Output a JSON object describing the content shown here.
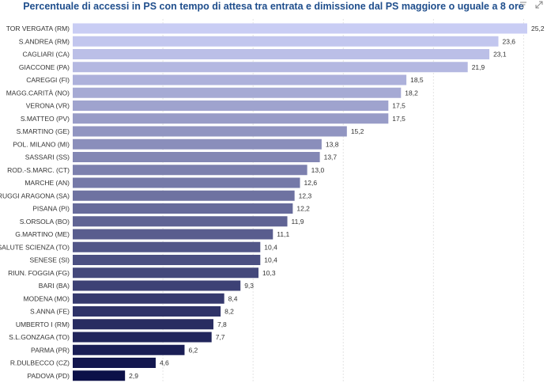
{
  "chart_data": {
    "type": "bar",
    "orientation": "horizontal",
    "title": "Percentuale di accessi in PS con tempo di attesa tra entrata e dimissione dal PS maggiore o uguale a 8 ore",
    "categories": [
      "TOR VERGATA (RM)",
      "S.ANDREA (RM)",
      "CAGLIARI (CA)",
      "GIACCONE (PA)",
      "CAREGGI (FI)",
      "MAGG.CARITÀ (NO)",
      "VERONA (VR)",
      "S.MATTEO (PV)",
      "S.MARTINO (GE)",
      "POL. MILANO (MI)",
      "SASSARI (SS)",
      "ROD.-S.MARC. (CT)",
      "MARCHE (AN)",
      "RUGGI ARAGONA (SA)",
      "PISANA (PI)",
      "S.ORSOLA (BO)",
      "G.MARTINO (ME)",
      "SALUTE SCIENZA (TO)",
      "SENESE (SI)",
      "RIUN. FOGGIA (FG)",
      "BARI (BA)",
      "MODENA (MO)",
      "S.ANNA (FE)",
      "UMBERTO I (RM)",
      "S.L.GONZAGA (TO)",
      "PARMA (PR)",
      "R.DULBECCO (CZ)",
      "PADOVA (PD)"
    ],
    "values": [
      25.2,
      23.6,
      23.1,
      21.9,
      18.5,
      18.2,
      17.5,
      17.5,
      15.2,
      13.8,
      13.7,
      13.0,
      12.6,
      12.3,
      12.2,
      11.9,
      11.1,
      10.4,
      10.4,
      10.3,
      9.3,
      8.4,
      8.2,
      7.8,
      7.7,
      6.2,
      4.6,
      2.9
    ],
    "value_labels": [
      "25,2",
      "23,6",
      "23,1",
      "21,9",
      "18,5",
      "18,2",
      "17,5",
      "17,5",
      "15,2",
      "13,8",
      "13,7",
      "13,0",
      "12,6",
      "12,3",
      "12,2",
      "11,9",
      "11,1",
      "10,4",
      "10,4",
      "10,3",
      "9,3",
      "8,4",
      "8,2",
      "7,8",
      "7,7",
      "6,2",
      "4,6",
      "2,9"
    ],
    "xlim": [
      0,
      25.2
    ],
    "grid": true,
    "colors": {
      "low": "#c9cdf4",
      "high": "#0c1048"
    },
    "xlabel": "",
    "ylabel": ""
  },
  "toolbar": {
    "filter_icon": "filter-icon",
    "expand_icon": "expand-icon"
  }
}
